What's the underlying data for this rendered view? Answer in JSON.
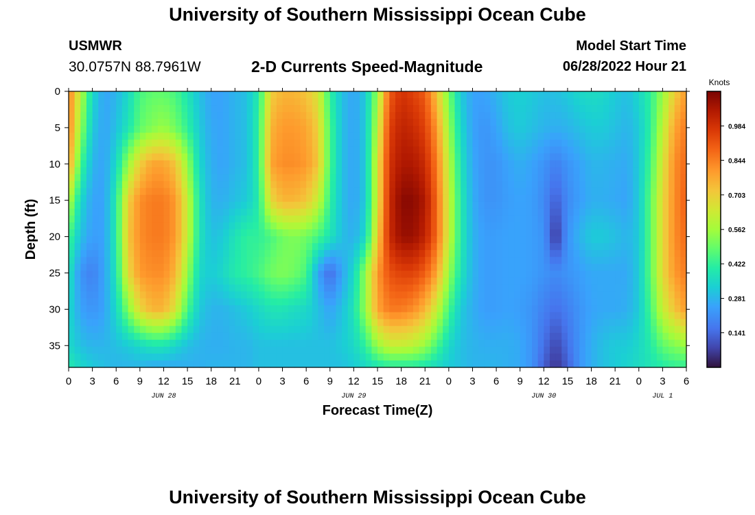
{
  "page": {
    "title": "University of Southern Mississippi Ocean Cube",
    "footer_title": "University of Southern Mississippi Ocean Cube",
    "station": "USMWR",
    "coords": "30.0757N  88.7961W",
    "subtitle": "2-D Currents Speed-Magnitude",
    "model_start_label": "Model Start Time",
    "model_start_value": "06/28/2022 Hour 21"
  },
  "chart_data": {
    "type": "heatmap",
    "title": "2-D Currents Speed-Magnitude",
    "xlabel": "Forecast Time(Z)",
    "ylabel": "Depth (ft)",
    "x_hours": [
      0,
      3,
      6,
      9,
      12,
      15,
      18,
      21,
      24,
      27,
      30,
      33,
      36,
      39,
      42,
      45,
      48,
      51,
      54,
      57,
      60,
      63,
      66,
      69,
      72,
      75,
      78
    ],
    "x_tick_labels": [
      "0",
      "3",
      "6",
      "9",
      "12",
      "15",
      "18",
      "21",
      "0",
      "3",
      "6",
      "9",
      "12",
      "15",
      "18",
      "21",
      "0",
      "3",
      "6",
      "9",
      "12",
      "15",
      "18",
      "21",
      "0",
      "3",
      "6"
    ],
    "date_labels": [
      {
        "text": "JUN 28",
        "hour": 12
      },
      {
        "text": "JUN 29",
        "hour": 36
      },
      {
        "text": "JUN 30",
        "hour": 60
      },
      {
        "text": "JUL 1",
        "hour": 75
      }
    ],
    "y_ticks": [
      0,
      5,
      10,
      15,
      20,
      25,
      30,
      35
    ],
    "y_range": [
      0,
      38
    ],
    "y_inverted": true,
    "colorbar": {
      "label": "Knots",
      "ticks": [
        "0.984",
        "0.844",
        "0.703",
        "0.562",
        "0.422",
        "0.281",
        "0.141"
      ],
      "tick_values": [
        0.984,
        0.844,
        0.703,
        0.562,
        0.422,
        0.281,
        0.141
      ],
      "range": [
        0.0,
        1.125
      ],
      "colormap": "jet"
    },
    "depths": [
      0,
      5,
      10,
      15,
      20,
      25,
      30,
      35,
      38
    ],
    "times": [
      0,
      1.5,
      3,
      4.5,
      6,
      7.5,
      9,
      10.5,
      12,
      13.5,
      15,
      16.5,
      18,
      19.5,
      21,
      22.5,
      24,
      25.5,
      27,
      28.5,
      30,
      31.5,
      33,
      34.5,
      36,
      37.5,
      39,
      40.5,
      42,
      43.5,
      45,
      46.5,
      48,
      49.5,
      51,
      52.5,
      54,
      55.5,
      57,
      58.5,
      60,
      61.5,
      63,
      64.5,
      66,
      67.5,
      69,
      70.5,
      72,
      73.5,
      75,
      76.5,
      78
    ],
    "speed": [
      [
        0.85,
        0.6,
        0.35,
        0.25,
        0.28,
        0.35,
        0.45,
        0.48,
        0.48,
        0.45,
        0.38,
        0.3,
        0.25,
        0.25,
        0.28,
        0.3,
        0.4,
        0.7,
        0.75,
        0.75,
        0.72,
        0.65,
        0.42,
        0.3,
        0.25,
        0.32,
        0.55,
        0.9,
        0.98,
        0.95,
        0.9,
        0.72,
        0.5,
        0.32,
        0.25,
        0.25,
        0.28,
        0.32,
        0.33,
        0.32,
        0.3,
        0.3,
        0.32,
        0.35,
        0.36,
        0.35,
        0.32,
        0.3,
        0.35,
        0.42,
        0.55,
        0.7,
        0.8
      ],
      [
        0.85,
        0.55,
        0.32,
        0.25,
        0.3,
        0.38,
        0.48,
        0.52,
        0.55,
        0.5,
        0.42,
        0.32,
        0.26,
        0.25,
        0.28,
        0.3,
        0.42,
        0.75,
        0.8,
        0.8,
        0.78,
        0.7,
        0.45,
        0.3,
        0.25,
        0.32,
        0.6,
        0.95,
        1.02,
        1.0,
        0.95,
        0.8,
        0.55,
        0.35,
        0.25,
        0.22,
        0.25,
        0.3,
        0.32,
        0.3,
        0.28,
        0.27,
        0.28,
        0.3,
        0.32,
        0.32,
        0.3,
        0.28,
        0.32,
        0.42,
        0.6,
        0.78,
        0.85
      ],
      [
        0.8,
        0.45,
        0.28,
        0.25,
        0.35,
        0.55,
        0.7,
        0.78,
        0.78,
        0.72,
        0.55,
        0.35,
        0.27,
        0.25,
        0.28,
        0.3,
        0.42,
        0.78,
        0.82,
        0.82,
        0.8,
        0.72,
        0.45,
        0.3,
        0.25,
        0.32,
        0.65,
        0.98,
        1.05,
        1.05,
        1.0,
        0.85,
        0.6,
        0.38,
        0.26,
        0.22,
        0.22,
        0.25,
        0.27,
        0.25,
        0.22,
        0.18,
        0.22,
        0.25,
        0.28,
        0.28,
        0.27,
        0.26,
        0.32,
        0.45,
        0.65,
        0.82,
        0.88
      ],
      [
        0.6,
        0.35,
        0.25,
        0.25,
        0.4,
        0.7,
        0.82,
        0.85,
        0.85,
        0.8,
        0.62,
        0.38,
        0.28,
        0.27,
        0.3,
        0.32,
        0.4,
        0.68,
        0.75,
        0.75,
        0.72,
        0.62,
        0.42,
        0.3,
        0.25,
        0.32,
        0.65,
        1.0,
        1.1,
        1.1,
        1.05,
        0.88,
        0.62,
        0.4,
        0.27,
        0.22,
        0.22,
        0.24,
        0.25,
        0.24,
        0.2,
        0.12,
        0.2,
        0.24,
        0.27,
        0.27,
        0.26,
        0.25,
        0.32,
        0.48,
        0.68,
        0.82,
        0.9
      ],
      [
        0.45,
        0.3,
        0.24,
        0.25,
        0.4,
        0.72,
        0.82,
        0.85,
        0.85,
        0.8,
        0.62,
        0.38,
        0.3,
        0.32,
        0.38,
        0.42,
        0.42,
        0.45,
        0.5,
        0.52,
        0.5,
        0.45,
        0.38,
        0.3,
        0.27,
        0.35,
        0.7,
        1.0,
        1.08,
        1.08,
        1.02,
        0.88,
        0.62,
        0.4,
        0.28,
        0.24,
        0.24,
        0.25,
        0.25,
        0.24,
        0.22,
        0.05,
        0.22,
        0.28,
        0.32,
        0.32,
        0.3,
        0.28,
        0.32,
        0.48,
        0.68,
        0.82,
        0.88
      ],
      [
        0.38,
        0.22,
        0.18,
        0.25,
        0.38,
        0.68,
        0.8,
        0.82,
        0.82,
        0.75,
        0.55,
        0.35,
        0.32,
        0.35,
        0.4,
        0.42,
        0.45,
        0.5,
        0.52,
        0.5,
        0.45,
        0.25,
        0.14,
        0.25,
        0.35,
        0.55,
        0.8,
        0.92,
        0.95,
        0.95,
        0.9,
        0.78,
        0.55,
        0.38,
        0.28,
        0.24,
        0.24,
        0.25,
        0.25,
        0.24,
        0.22,
        0.2,
        0.22,
        0.24,
        0.26,
        0.26,
        0.26,
        0.26,
        0.32,
        0.48,
        0.68,
        0.8,
        0.85
      ],
      [
        0.35,
        0.25,
        0.22,
        0.25,
        0.35,
        0.52,
        0.68,
        0.75,
        0.75,
        0.65,
        0.45,
        0.32,
        0.28,
        0.28,
        0.3,
        0.32,
        0.35,
        0.38,
        0.38,
        0.36,
        0.35,
        0.3,
        0.25,
        0.3,
        0.38,
        0.55,
        0.78,
        0.85,
        0.85,
        0.82,
        0.75,
        0.62,
        0.45,
        0.32,
        0.27,
        0.24,
        0.24,
        0.25,
        0.24,
        0.22,
        0.18,
        0.15,
        0.18,
        0.22,
        0.25,
        0.26,
        0.26,
        0.27,
        0.32,
        0.45,
        0.62,
        0.72,
        0.8
      ],
      [
        0.35,
        0.3,
        0.28,
        0.28,
        0.3,
        0.32,
        0.35,
        0.38,
        0.38,
        0.34,
        0.3,
        0.28,
        0.27,
        0.27,
        0.28,
        0.28,
        0.3,
        0.3,
        0.3,
        0.3,
        0.3,
        0.3,
        0.3,
        0.32,
        0.35,
        0.42,
        0.55,
        0.62,
        0.62,
        0.6,
        0.55,
        0.45,
        0.35,
        0.3,
        0.28,
        0.27,
        0.27,
        0.27,
        0.26,
        0.22,
        0.15,
        0.08,
        0.15,
        0.22,
        0.27,
        0.3,
        0.32,
        0.32,
        0.35,
        0.4,
        0.48,
        0.52,
        0.55
      ],
      [
        0.4,
        0.35,
        0.32,
        0.3,
        0.28,
        0.28,
        0.28,
        0.26,
        0.26,
        0.26,
        0.27,
        0.27,
        0.28,
        0.28,
        0.28,
        0.28,
        0.3,
        0.3,
        0.3,
        0.3,
        0.3,
        0.3,
        0.3,
        0.3,
        0.32,
        0.35,
        0.38,
        0.4,
        0.4,
        0.4,
        0.38,
        0.35,
        0.32,
        0.3,
        0.28,
        0.28,
        0.28,
        0.27,
        0.26,
        0.22,
        0.12,
        0.05,
        0.12,
        0.22,
        0.27,
        0.3,
        0.32,
        0.34,
        0.36,
        0.38,
        0.4,
        0.42,
        0.42
      ]
    ]
  }
}
